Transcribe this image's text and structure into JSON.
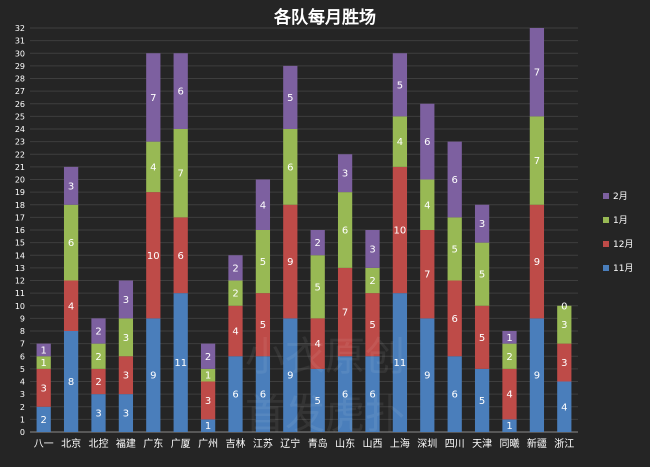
{
  "chart_data": {
    "type": "bar",
    "stacked": true,
    "title": "各队每月胜场",
    "categories": [
      "八一",
      "北京",
      "北控",
      "福建",
      "广东",
      "广厦",
      "广州",
      "吉林",
      "江苏",
      "辽宁",
      "青岛",
      "山东",
      "山西",
      "上海",
      "深圳",
      "四川",
      "天津",
      "同曦",
      "新疆",
      "浙江"
    ],
    "series": [
      {
        "name": "11月",
        "color": "#4a7ebb",
        "values": [
          2,
          8,
          3,
          3,
          9,
          11,
          1,
          6,
          6,
          9,
          5,
          6,
          6,
          11,
          9,
          6,
          5,
          1,
          9,
          4
        ]
      },
      {
        "name": "12月",
        "color": "#be4b48",
        "values": [
          3,
          4,
          2,
          3,
          10,
          6,
          3,
          4,
          5,
          9,
          4,
          7,
          5,
          10,
          7,
          6,
          5,
          4,
          9,
          3
        ]
      },
      {
        "name": "1月",
        "color": "#98b954",
        "values": [
          1,
          6,
          2,
          3,
          4,
          7,
          1,
          2,
          5,
          6,
          5,
          6,
          2,
          4,
          4,
          5,
          5,
          2,
          7,
          3
        ]
      },
      {
        "name": "2月",
        "color": "#7d60a0",
        "values": [
          1,
          3,
          2,
          3,
          7,
          6,
          2,
          2,
          4,
          5,
          2,
          3,
          3,
          5,
          6,
          6,
          3,
          1,
          7,
          0
        ]
      }
    ],
    "legend_order": [
      "2月",
      "1月",
      "12月",
      "11月"
    ],
    "ylim": [
      0,
      32
    ],
    "ytick_step": 1,
    "grid": true,
    "legend_position": "right",
    "xlabel": "",
    "ylabel": ""
  },
  "watermark": {
    "line1": "小衣原创",
    "line2": "首发虎扑"
  }
}
